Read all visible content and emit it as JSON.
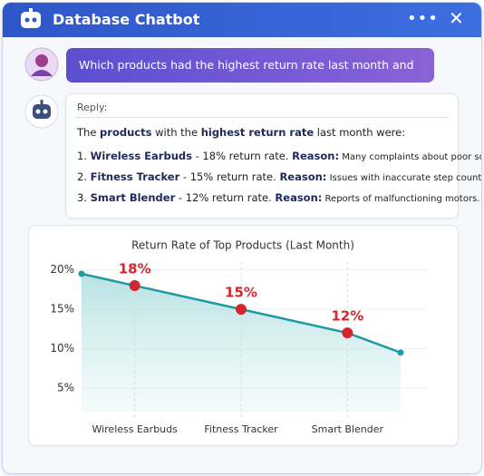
{
  "header": {
    "title": "Database Chatbot"
  },
  "user_message": "Which products had the highest return rate last month and why?",
  "reply": {
    "label": "Reply:",
    "intro": [
      "The ",
      "products",
      " with the ",
      "highest return rate",
      " last month were:"
    ],
    "items": [
      {
        "number": "1.",
        "product": "Wireless Earbuds",
        "rate": " - 18% return rate. ",
        "reason_label": "Reason:",
        "reason": " Many complaints about poor sound quality."
      },
      {
        "number": "2.",
        "product": "Fitness Tracker",
        "rate": " - 15% return rate. ",
        "reason_label": "Reason:",
        "reason": " Issues with inaccurate step counting."
      },
      {
        "number": "3.",
        "product": "Smart Blender",
        "rate": " - 12% return rate. ",
        "reason_label": "Reason:",
        "reason": " Reports of malfunctioning motors."
      }
    ]
  },
  "chart_data": {
    "type": "line",
    "title": "Return Rate of Top Products (Last Month)",
    "categories": [
      null,
      "Wireless Earbuds",
      "Fitness Tracker",
      "Smart Blender",
      null
    ],
    "values": [
      19.5,
      18,
      15,
      12,
      9.5
    ],
    "value_labels": [
      null,
      "18%",
      "15%",
      "12%",
      null
    ],
    "color": "#1e9aa2",
    "point_color": "#d1282e",
    "ylim": [
      2,
      21
    ],
    "yticks": [
      {
        "value": 5,
        "label": "5%"
      },
      {
        "value": 10,
        "label": "10%"
      },
      {
        "value": 15,
        "label": "15%"
      },
      {
        "value": 20,
        "label": "20%"
      }
    ],
    "grid": true
  }
}
